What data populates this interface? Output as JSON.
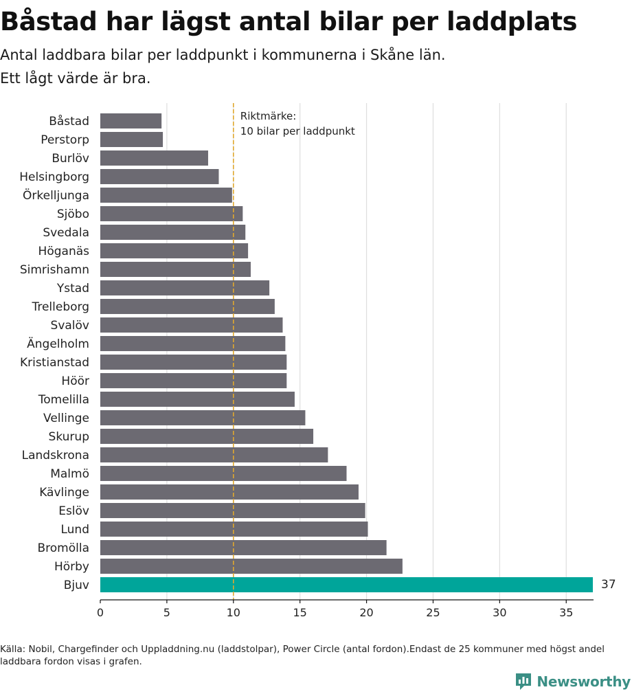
{
  "title": "Båstad har lägst antal bilar per laddplats",
  "subtitle_line1": "Antal laddbara bilar per laddpunkt i kommunerna i Skåne län.",
  "subtitle_line2": "Ett lågt värde är bra.",
  "source": "Källa: Nobil, Chargefinder och Uppladdning.nu (laddstolpar), Power Circle (antal fordon).Endast de 25 kommuner med högst andel laddbara fordon visas i grafen.",
  "logo_text": "Newsworthy",
  "colors": {
    "bar": "#6c6a72",
    "highlight": "#00a59a",
    "reference": "#e0a82e",
    "grid": "#dedede",
    "logo": "#3b8f85"
  },
  "chart_data": {
    "type": "bar",
    "orientation": "horizontal",
    "categories": [
      "Båstad",
      "Perstorp",
      "Burlöv",
      "Helsingborg",
      "Örkelljunga",
      "Sjöbo",
      "Svedala",
      "Höganäs",
      "Simrishamn",
      "Ystad",
      "Trelleborg",
      "Svalöv",
      "Ängelholm",
      "Kristianstad",
      "Höör",
      "Tomelilla",
      "Vellinge",
      "Skurup",
      "Landskrona",
      "Malmö",
      "Kävlinge",
      "Eslöv",
      "Lund",
      "Bromölla",
      "Hörby",
      "Bjuv"
    ],
    "values": [
      4.6,
      4.7,
      8.1,
      8.9,
      9.9,
      10.7,
      10.9,
      11.1,
      11.3,
      12.7,
      13.1,
      13.7,
      13.9,
      14.0,
      14.0,
      14.6,
      15.4,
      16.0,
      17.1,
      18.5,
      19.4,
      19.9,
      20.1,
      21.5,
      22.7,
      37
    ],
    "highlight": "Bjuv",
    "value_label": {
      "category": "Bjuv",
      "text": "37"
    },
    "reference_line": {
      "value": 10,
      "label_line1": "Riktmärke:",
      "label_line2": "10 bilar per laddpunkt"
    },
    "xlim": [
      0,
      37
    ],
    "xticks": [
      0,
      5,
      10,
      15,
      20,
      25,
      30,
      35
    ],
    "xlabel": "",
    "ylabel": "",
    "grid": true,
    "legend": "none"
  }
}
